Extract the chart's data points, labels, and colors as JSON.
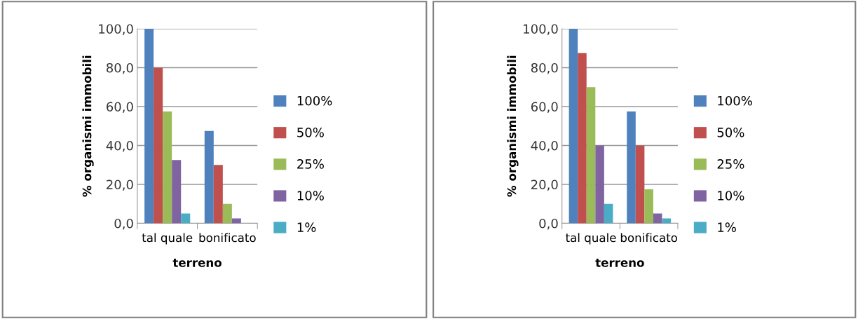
{
  "chart_data": [
    {
      "type": "bar",
      "xlabel": "terreno",
      "ylabel": "% organismi immobili",
      "categories": [
        "tal quale",
        "bonificato"
      ],
      "ylim": [
        0,
        100
      ],
      "yticks": [
        {
          "value": 0,
          "label": "0,0"
        },
        {
          "value": 20,
          "label": "20,0"
        },
        {
          "value": 40,
          "label": "40,0"
        },
        {
          "value": 60,
          "label": "60,0"
        },
        {
          "value": 80,
          "label": "80,0"
        },
        {
          "value": 100,
          "label": "100,0"
        }
      ],
      "grid": "y",
      "legend": "right",
      "series": [
        {
          "name": "100%",
          "color": "#4f81bd",
          "values": [
            100,
            47.5
          ]
        },
        {
          "name": "50%",
          "color": "#c0504d",
          "values": [
            80,
            30
          ]
        },
        {
          "name": "25%",
          "color": "#9bbb59",
          "values": [
            57.5,
            10
          ]
        },
        {
          "name": "10%",
          "color": "#8064a2",
          "values": [
            32.5,
            2.5
          ]
        },
        {
          "name": "1%",
          "color": "#4bacc6",
          "values": [
            5,
            0
          ]
        }
      ]
    },
    {
      "type": "bar",
      "xlabel": "terreno",
      "ylabel": "% organismi immobili",
      "categories": [
        "tal quale",
        "bonificato"
      ],
      "ylim": [
        0,
        100
      ],
      "yticks": [
        {
          "value": 0,
          "label": "0,0"
        },
        {
          "value": 20,
          "label": "20,0"
        },
        {
          "value": 40,
          "label": "40,0"
        },
        {
          "value": 60,
          "label": "60,0"
        },
        {
          "value": 80,
          "label": "80,0"
        },
        {
          "value": 100,
          "label": "100,0"
        }
      ],
      "grid": "y",
      "legend": "right",
      "series": [
        {
          "name": "100%",
          "color": "#4f81bd",
          "values": [
            100,
            57.5
          ]
        },
        {
          "name": "50%",
          "color": "#c0504d",
          "values": [
            87.5,
            40
          ]
        },
        {
          "name": "25%",
          "color": "#9bbb59",
          "values": [
            70,
            17.5
          ]
        },
        {
          "name": "10%",
          "color": "#8064a2",
          "values": [
            40,
            5
          ]
        },
        {
          "name": "1%",
          "color": "#4bacc6",
          "values": [
            10,
            2.5
          ]
        }
      ]
    }
  ]
}
